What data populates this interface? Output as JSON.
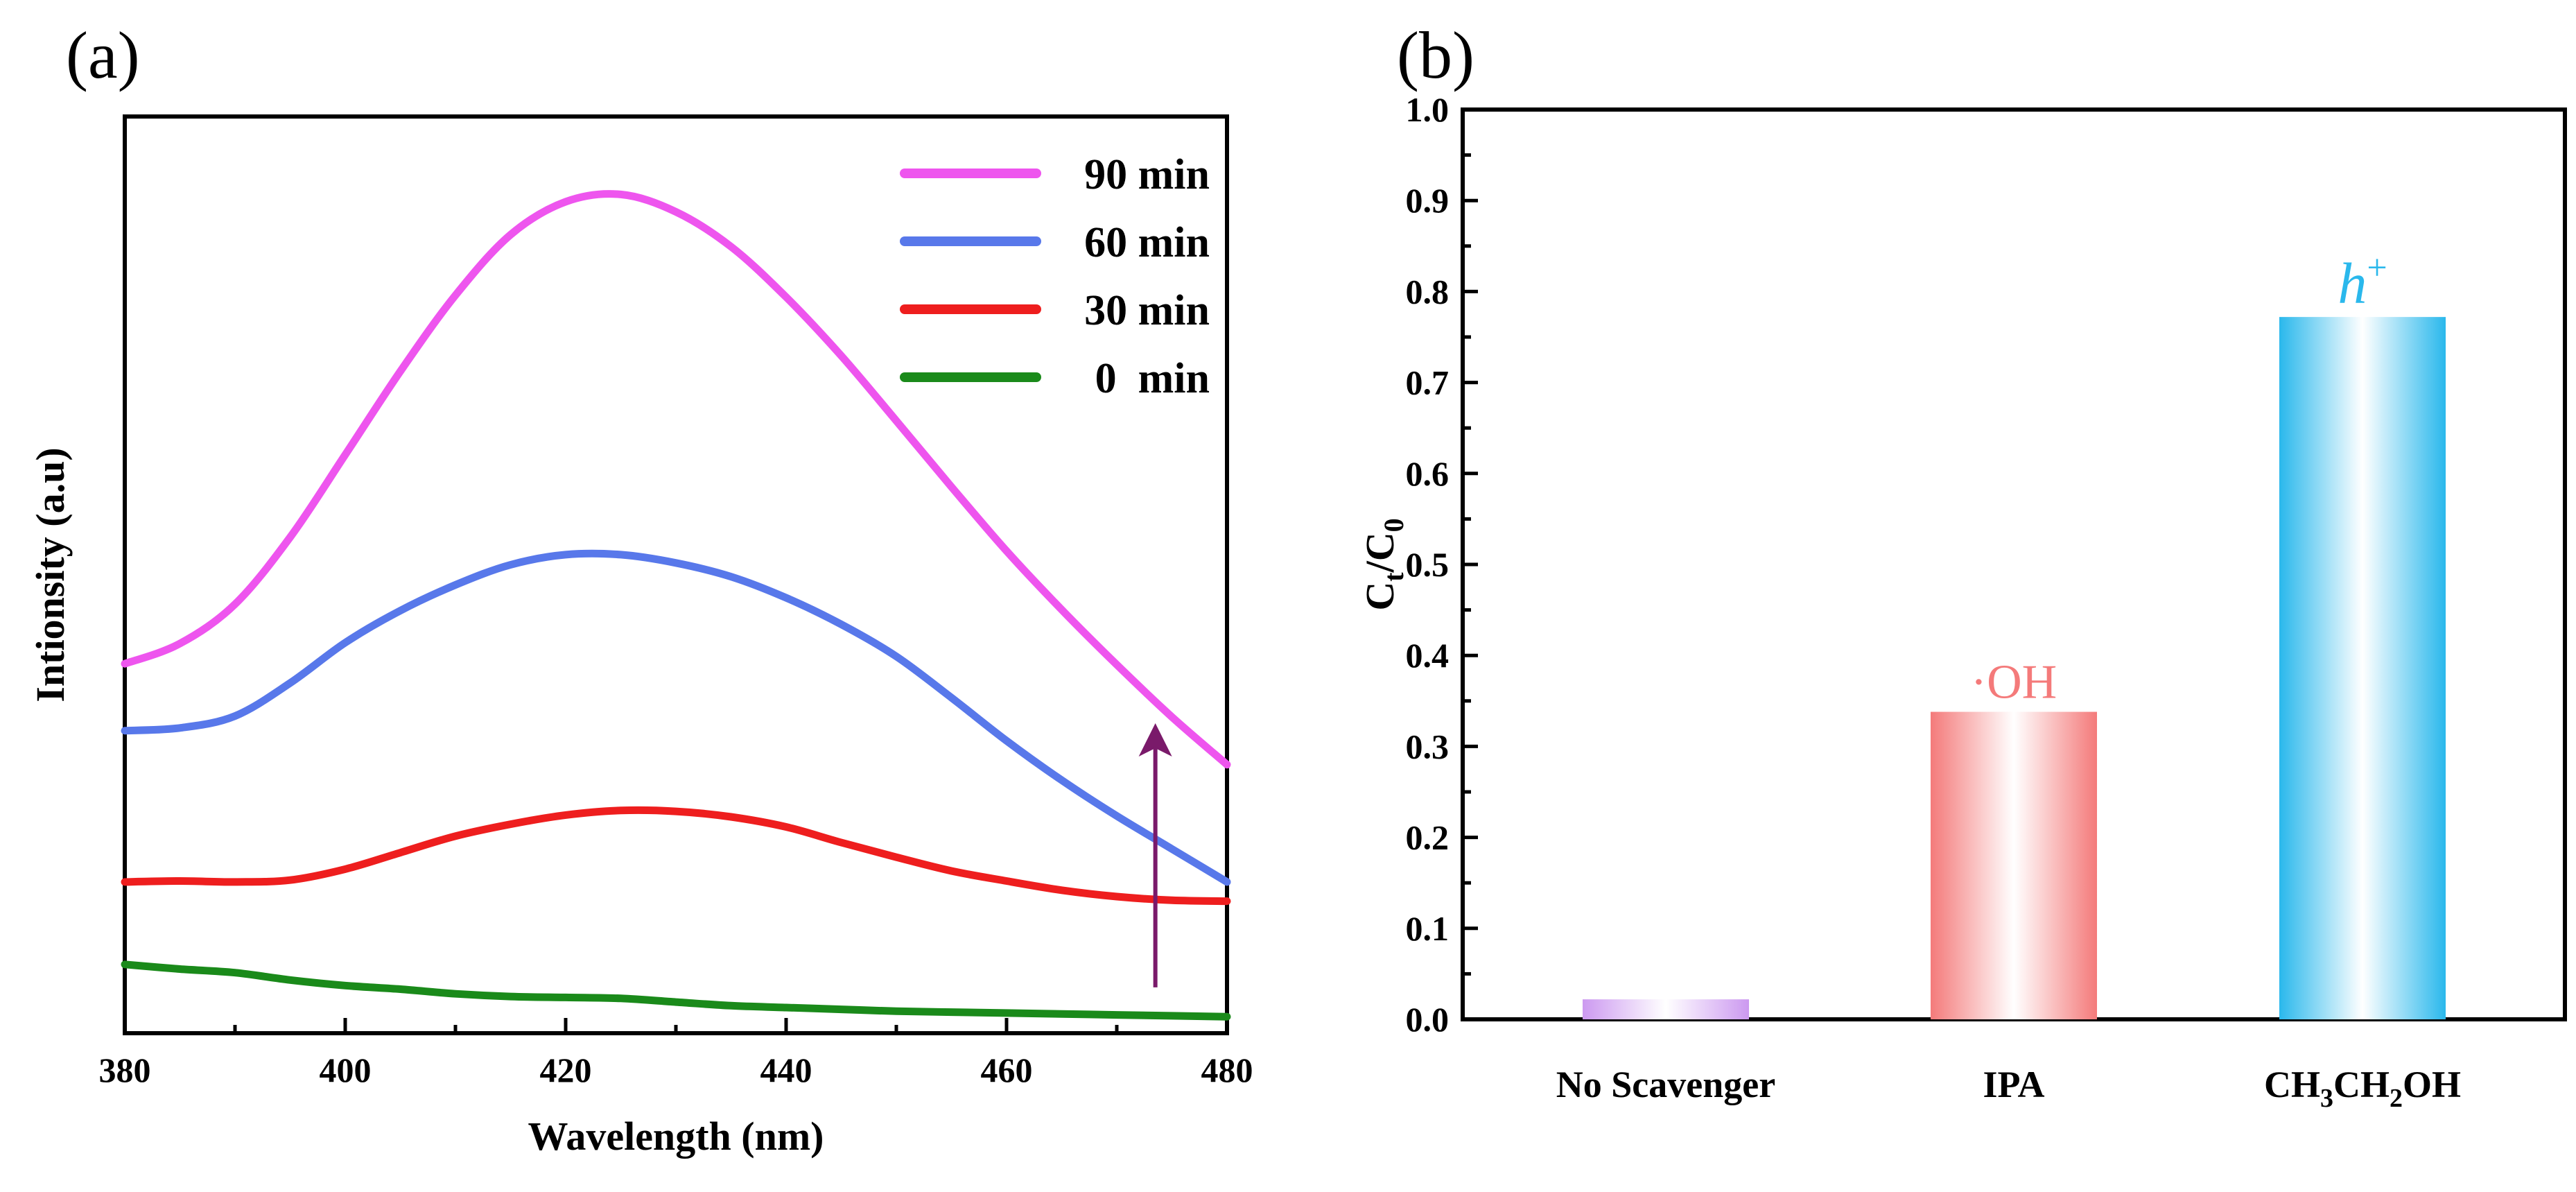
{
  "chart_data": [
    {
      "panel": "(a)",
      "type": "line",
      "xlabel": "Wavelength (nm)",
      "ylabel": "Intionsity (a.u)",
      "xlim": [
        380,
        480
      ],
      "ylim": [
        0,
        100
      ],
      "xticks": [
        "380",
        "400",
        "420",
        "440",
        "460",
        "480"
      ],
      "legend_position": "top-right",
      "series": [
        {
          "name": "90 min",
          "color": "#ee55ee",
          "x": [
            380,
            385,
            390,
            395,
            400,
            405,
            410,
            415,
            420,
            425,
            430,
            435,
            440,
            445,
            450,
            455,
            460,
            465,
            470,
            475,
            480
          ],
          "y": [
            40.3,
            42.5,
            46.8,
            54.1,
            63.1,
            72.2,
            80.5,
            87.1,
            90.7,
            91.5,
            89.6,
            85.8,
            80.3,
            73.9,
            66.8,
            59.6,
            52.6,
            46.2,
            40.2,
            34.5,
            29.3
          ]
        },
        {
          "name": "60 min",
          "color": "#5878ea",
          "x": [
            380,
            385,
            390,
            395,
            400,
            405,
            410,
            415,
            420,
            425,
            430,
            435,
            440,
            445,
            450,
            455,
            460,
            465,
            470,
            475,
            480
          ],
          "y": [
            33.0,
            33.3,
            34.6,
            38.2,
            42.6,
            46.1,
            48.9,
            51.1,
            52.2,
            52.2,
            51.3,
            49.8,
            47.5,
            44.6,
            41.1,
            36.6,
            31.9,
            27.6,
            23.7,
            20.1,
            16.5
          ]
        },
        {
          "name": "30 min",
          "color": "#ee1e1e",
          "x": [
            380,
            385,
            390,
            395,
            400,
            405,
            410,
            415,
            420,
            425,
            430,
            435,
            440,
            445,
            450,
            455,
            460,
            465,
            470,
            475,
            480
          ],
          "y": [
            16.5,
            16.6,
            16.5,
            16.7,
            17.9,
            19.7,
            21.5,
            22.8,
            23.8,
            24.3,
            24.2,
            23.6,
            22.5,
            20.8,
            19.2,
            17.7,
            16.6,
            15.6,
            14.9,
            14.5,
            14.4
          ]
        },
        {
          "name": "0  min",
          "color": "#1a8a1a",
          "x": [
            380,
            385,
            390,
            395,
            400,
            405,
            410,
            415,
            420,
            425,
            430,
            435,
            440,
            445,
            450,
            455,
            460,
            465,
            470,
            475,
            480
          ],
          "y": [
            7.5,
            7.0,
            6.6,
            5.8,
            5.2,
            4.8,
            4.3,
            4.0,
            3.9,
            3.8,
            3.4,
            3.0,
            2.8,
            2.6,
            2.4,
            2.3,
            2.2,
            2.1,
            2.0,
            1.9,
            1.8
          ]
        }
      ],
      "annotation": {
        "type": "arrow",
        "direction": "up",
        "color": "#7a1a6a",
        "x": 473.5,
        "y_from": 5,
        "y_to": 32
      }
    },
    {
      "panel": "(b)",
      "type": "bar",
      "xlabel": "",
      "ylabel": "Ct/C0",
      "ylim": [
        0.0,
        1.0
      ],
      "yticks": [
        "0.0",
        "0.1",
        "0.2",
        "0.3",
        "0.4",
        "0.5",
        "0.6",
        "0.7",
        "0.8",
        "0.9",
        "1.0"
      ],
      "categories": [
        "No Scavenger",
        "IPA",
        "CH3CH2OH"
      ],
      "values": [
        0.022,
        0.338,
        0.772
      ],
      "colors": [
        "#cc99f0",
        "#f47a7a",
        "#2ab8ec"
      ],
      "bar_labels": [
        "",
        "·OH",
        "h+"
      ]
    }
  ]
}
